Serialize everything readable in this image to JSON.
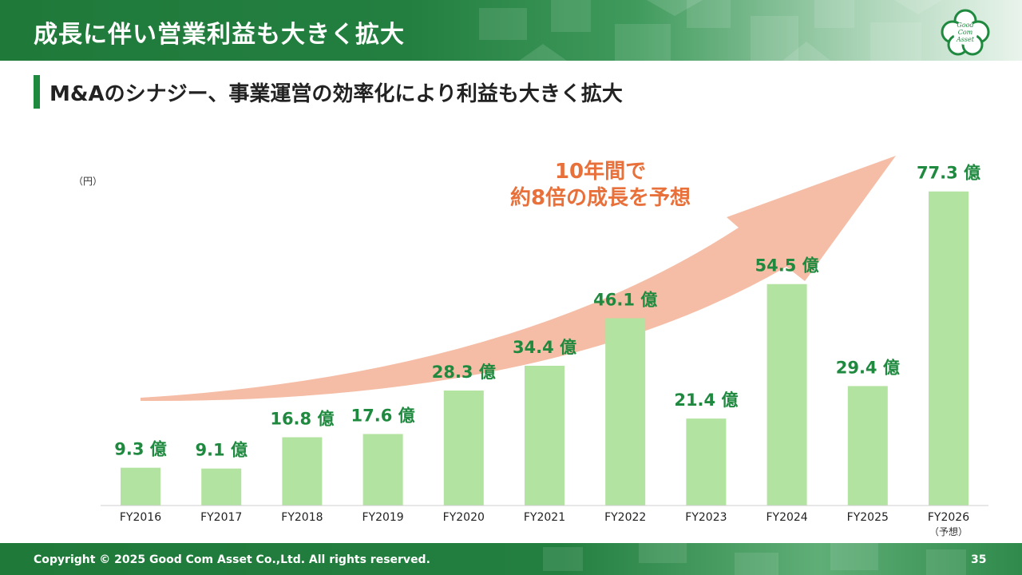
{
  "header": {
    "title": "成長に伴い営業利益も大きく拡大",
    "logo_lines": [
      "Good",
      "Com",
      "Asset"
    ]
  },
  "subtitle": "M&Aのシナジー、事業運営の効率化により利益も大きく拡大",
  "unit": "（円）",
  "arrow_text": [
    "10年間で",
    "約8倍の成長を予想"
  ],
  "colors": {
    "brand_green": "#1f8a3f",
    "bar": "#b3e3a0",
    "arrow": "#f5bda5",
    "arrow_text": "#e8703a"
  },
  "chart_data": {
    "type": "bar",
    "title": "",
    "ylabel": "（円）",
    "categories": [
      "FY2016",
      "FY2017",
      "FY2018",
      "FY2019",
      "FY2020",
      "FY2021",
      "FY2022",
      "FY2023",
      "FY2024",
      "FY2025",
      "FY2026"
    ],
    "category_notes": [
      "",
      "",
      "",
      "",
      "",
      "",
      "",
      "",
      "",
      "",
      "（予想）"
    ],
    "values": [
      9.3,
      9.1,
      16.8,
      17.6,
      28.3,
      34.4,
      46.1,
      21.4,
      54.5,
      29.4,
      77.3
    ],
    "value_labels": [
      "9.3 億",
      "9.1 億",
      "16.8 億",
      "17.6 億",
      "28.3 億",
      "34.4 億",
      "46.1 億",
      "21.4 億",
      "54.5 億",
      "29.4 億",
      "77.3 億"
    ],
    "ylim": [
      0,
      80
    ],
    "grid": false
  },
  "footer": {
    "copyright": "Copyright © 2025 Good Com Asset Co.,Ltd. All rights reserved.",
    "page_number": "35"
  }
}
